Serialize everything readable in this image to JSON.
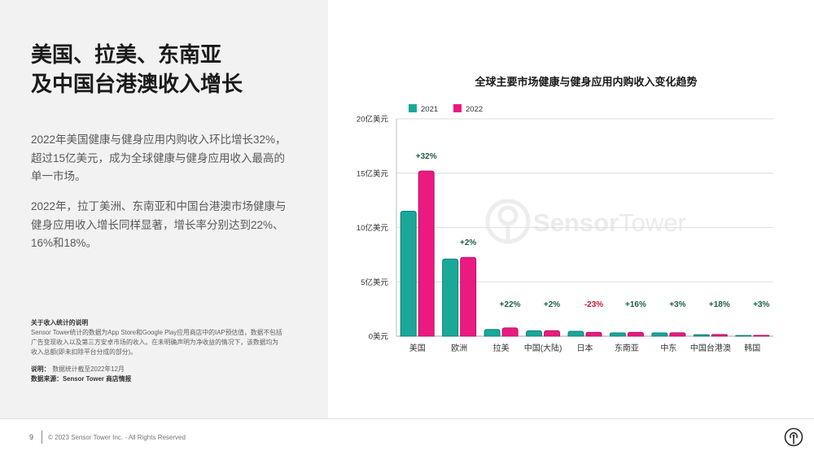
{
  "slide": {
    "title_lines": [
      "美国、拉美、东南亚",
      "及中国台港澳收入增长"
    ],
    "paragraphs": [
      [
        "2022年美国健康与健身应用内购收入环比增长32%，",
        "超过15亿美元，成为全球健康与健身应用收入最高的",
        "单一市场。"
      ],
      [
        "2022年，拉丁美洲、东南亚和中国台港澳市场健康与",
        "健身应用收入增长同样显著，增长率分别达到22%、",
        "16%和18%。"
      ]
    ],
    "notes": {
      "heading": "关于收入统计的说明",
      "lines": [
        "Sensor Tower统计的数据为App Store和Google Play应用商店中的IAP预估值，数据不包括",
        "广告变现收入以及第三方安卓市场的收入。在未明确声明为净收益的情况下，该数据均为",
        "收入总额(即未扣除平台分成的部分)。"
      ],
      "date_label": "说明：",
      "date_value": "数据统计截至2022年12月",
      "source": "数据来源：Sensor Tower 商店情报"
    }
  },
  "footer": {
    "page_number": "9",
    "copyright": "© 2023 Sensor Tower Inc. - All Rights Reserved",
    "logo_icon": "sensor-tower-logo-icon"
  },
  "watermark": {
    "brand_a": "Sensor",
    "brand_b": "Tower"
  },
  "colors": {
    "panel_background": "#f2f2f2",
    "growth_positive": "#1f5d4b",
    "growth_negative": "#d2142f"
  },
  "chart_data": {
    "type": "bar",
    "title": "全球主要市场健康与健身应用内购收入变化趋势",
    "xlabel": "",
    "ylabel": "",
    "categories": [
      "美国",
      "欧洲",
      "拉美",
      "中国(大陆)",
      "日本",
      "东南亚",
      "中东",
      "中国台港澳",
      "韩国"
    ],
    "series": [
      {
        "name": "2021",
        "color": "#1aa898",
        "outline": "#0f7f73",
        "values": [
          11.5,
          7.1,
          0.62,
          0.5,
          0.45,
          0.3,
          0.3,
          0.13,
          0.07
        ]
      },
      {
        "name": "2022",
        "color": "#ec1a80",
        "outline": "#b5125f",
        "values": [
          15.2,
          7.25,
          0.76,
          0.51,
          0.35,
          0.35,
          0.31,
          0.15,
          0.072
        ]
      }
    ],
    "growth_labels": [
      "+32%",
      "+2%",
      "+22%",
      "+2%",
      "-23%",
      "+16%",
      "+3%",
      "+18%",
      "+3%"
    ],
    "y_ticks": [
      "0美元",
      "5亿美元",
      "10亿美元",
      "15亿美元",
      "20亿美元"
    ],
    "y_tick_values": [
      0,
      5,
      10,
      15,
      20
    ],
    "ylim": [
      0,
      20
    ],
    "grid": true,
    "legend_position": "top-left"
  }
}
